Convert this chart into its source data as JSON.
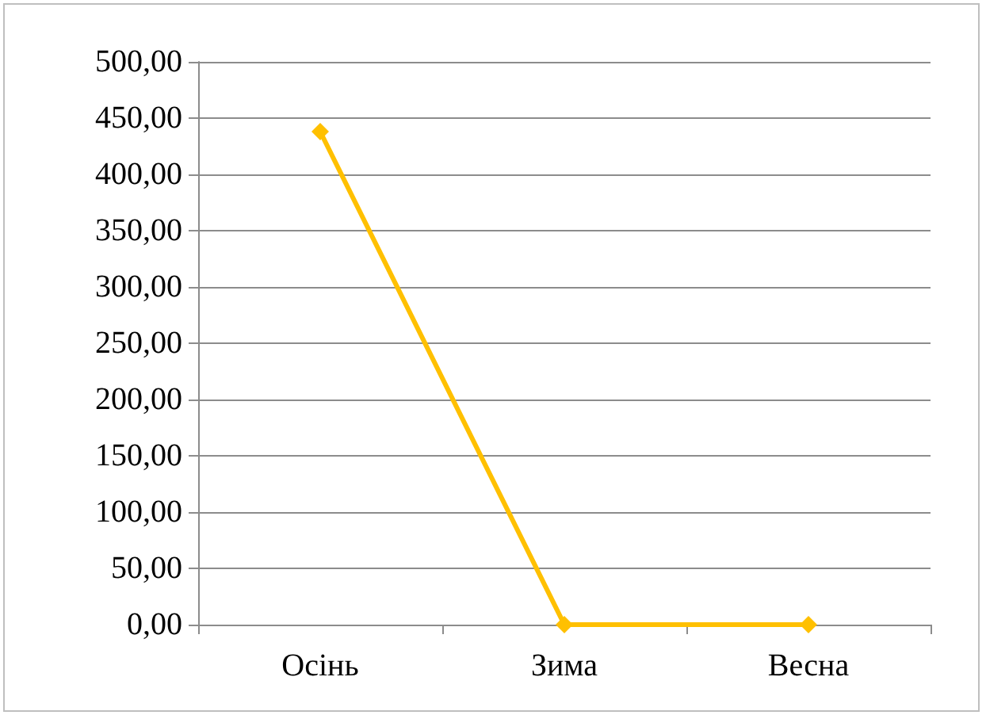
{
  "chart_data": {
    "type": "line",
    "categories": [
      "Осінь",
      "Зима",
      "Весна"
    ],
    "series": [
      {
        "color": "#ffc000",
        "values": [
          438,
          0,
          0
        ]
      }
    ],
    "ylim": [
      0,
      500
    ],
    "yticks": [
      {
        "value": 0,
        "label": "0,00"
      },
      {
        "value": 50,
        "label": "50,00"
      },
      {
        "value": 100,
        "label": "100,00"
      },
      {
        "value": 150,
        "label": "150,00"
      },
      {
        "value": 200,
        "label": "200,00"
      },
      {
        "value": 250,
        "label": "250,00"
      },
      {
        "value": 300,
        "label": "300,00"
      },
      {
        "value": 350,
        "label": "350,00"
      },
      {
        "value": 400,
        "label": "400,00"
      },
      {
        "value": 450,
        "label": "450,00"
      },
      {
        "value": 500,
        "label": "500,00"
      }
    ],
    "grid": "y",
    "marker": "diamond",
    "line_style": "solid"
  }
}
